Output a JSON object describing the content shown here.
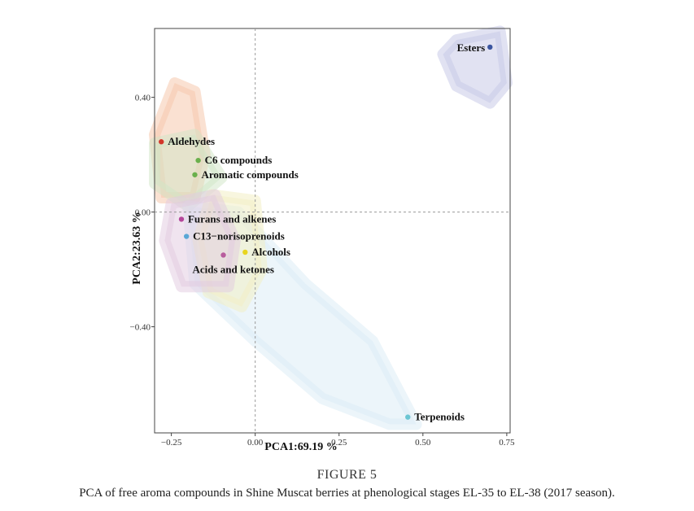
{
  "figure": {
    "label": "FIGURE 5",
    "caption": "PCA of free aroma compounds in Shine Muscat berries at phenological stages EL-35 to EL-38 (2017 season)."
  },
  "chart_data": {
    "type": "scatter",
    "xlabel": "PCA1:69.19 %",
    "ylabel": "PCA2:23.63 %",
    "xlim": [
      -0.3,
      0.76
    ],
    "ylim": [
      -0.77,
      0.64
    ],
    "xticks": [
      {
        "value": -0.25,
        "label": "−0.25"
      },
      {
        "value": 0.0,
        "label": "0.00"
      },
      {
        "value": 0.25,
        "label": "0.25"
      },
      {
        "value": 0.5,
        "label": "0.50"
      },
      {
        "value": 0.75,
        "label": "0.75"
      }
    ],
    "yticks": [
      {
        "value": 0.4,
        "label": "0.40"
      },
      {
        "value": 0.0,
        "label": "0.00"
      },
      {
        "value": -0.4,
        "label": "−0.40"
      }
    ],
    "reference_lines": {
      "x": 0,
      "y": 0
    },
    "points": [
      {
        "name": "Esters",
        "x": 0.7,
        "y": 0.575,
        "color": "#3a55a0"
      },
      {
        "name": "Aldehydes",
        "x": -0.28,
        "y": 0.245,
        "color": "#d2362a"
      },
      {
        "name": "C6 compounds",
        "x": -0.17,
        "y": 0.18,
        "color": "#6ab04c"
      },
      {
        "name": "Aromatic compounds",
        "x": -0.18,
        "y": 0.13,
        "color": "#6ab04c"
      },
      {
        "name": "Furans and alkenes",
        "x": -0.22,
        "y": -0.025,
        "color": "#b5479b"
      },
      {
        "name": "C13−norisoprenoids",
        "x": -0.205,
        "y": -0.085,
        "color": "#5aa7d6"
      },
      {
        "name": "Alcohols",
        "x": -0.03,
        "y": -0.14,
        "color": "#e8d51e"
      },
      {
        "name": "Acids and ketones",
        "x": -0.095,
        "y": -0.15,
        "color": "#b85c9e"
      },
      {
        "name": "Terpenoids",
        "x": 0.455,
        "y": -0.715,
        "color": "#6cc6d3"
      }
    ]
  }
}
